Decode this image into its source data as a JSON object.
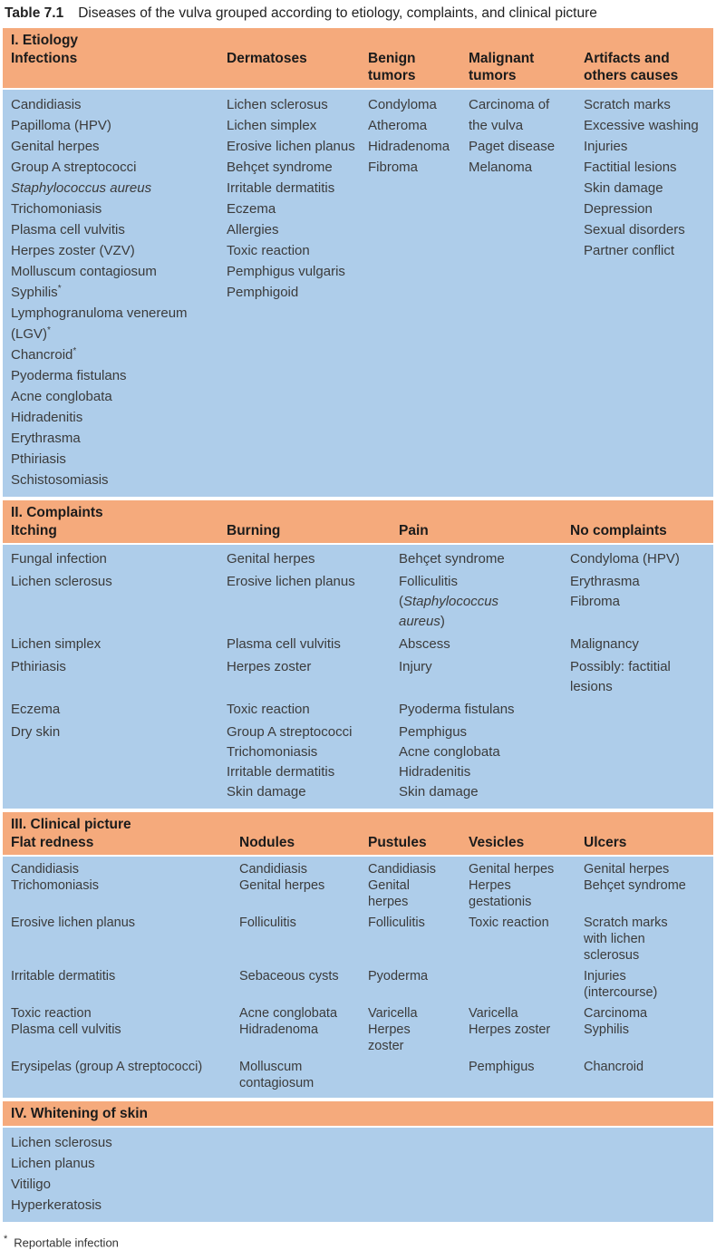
{
  "caption": {
    "label": "Table 7.1",
    "text": "Diseases of the vulva grouped according to etiology, complaints, and clinical picture"
  },
  "colors": {
    "band_orange": "#F5AA7C",
    "body_blue": "#AECDEA",
    "heading_text": "#1b1b1b",
    "body_text": "#3b3b3b"
  },
  "sections": [
    {
      "heading": "I. Etiology",
      "layout": "lists",
      "columns": [
        "Infections",
        "Dermatoses",
        "Benign tumors",
        "Malignant tumors",
        "Artifacts and others causes"
      ],
      "lists": [
        [
          "Candidiasis",
          "Papilloma (HPV)",
          "Genital herpes",
          "Group A streptococci",
          {
            "parts": [
              {
                "t": "Staphylococcus aureus",
                "i": true
              }
            ]
          },
          "Trichomoniasis",
          "Plasma cell vulvitis",
          "Herpes zoster (VZV)",
          "Molluscum contagiosum",
          {
            "parts": [
              {
                "t": "Syphilis"
              },
              {
                "t": "*",
                "sup": true
              }
            ]
          },
          {
            "parts": [
              {
                "t": "Lymphogranuloma venereum (LGV)"
              },
              {
                "t": "*",
                "sup": true
              }
            ]
          },
          {
            "parts": [
              {
                "t": "Chancroid"
              },
              {
                "t": "*",
                "sup": true
              }
            ]
          },
          "Pyoderma fistulans",
          "Acne conglobata",
          "Hidradenitis",
          "Erythrasma",
          "Pthiriasis",
          "Schistosomiasis"
        ],
        [
          "Lichen sclerosus",
          "Lichen simplex",
          "Erosive lichen planus",
          "Behçet syndrome",
          "Irritable dermatitis",
          "Eczema",
          "Allergies",
          "Toxic reaction",
          "Pemphigus vulgaris",
          "Pemphigoid"
        ],
        [
          "Condyloma",
          "Atheroma",
          "Hidradenoma",
          "Fibroma"
        ],
        [
          "Carcinoma of the vulva",
          "Paget disease",
          "Melanoma"
        ],
        [
          "Scratch marks",
          "Excessive washing",
          "Injuries",
          "Factitial lesions",
          "Skin damage",
          "Depression",
          "Sexual disorders",
          "Partner conflict"
        ]
      ]
    },
    {
      "heading": "II. Complaints",
      "layout": "rows",
      "columns": [
        "Itching",
        "Burning",
        "Pain",
        "No complaints"
      ],
      "rows": [
        [
          [
            "Fungal infection"
          ],
          [
            "Genital herpes"
          ],
          [
            "Behçet syndrome"
          ],
          [
            "Condyloma (HPV)"
          ]
        ],
        [
          [
            "Lichen sclerosus"
          ],
          [
            "Erosive lichen planus"
          ],
          [
            {
              "parts": [
                {
                  "t": "Folliculitis ("
                },
                {
                  "t": "Staphylococcus aureus",
                  "i": true
                },
                {
                  "t": ")"
                }
              ]
            }
          ],
          [
            "Erythrasma",
            "Fibroma"
          ]
        ],
        [
          [
            "Lichen simplex"
          ],
          [
            "Plasma cell vulvitis"
          ],
          [
            "Abscess"
          ],
          [
            "Malignancy"
          ]
        ],
        [
          [
            "Pthiriasis"
          ],
          [
            "Herpes zoster"
          ],
          [
            "Injury"
          ],
          [
            "Possibly: factitial lesions"
          ]
        ],
        [
          [
            "Eczema"
          ],
          [
            "Toxic reaction"
          ],
          [
            "Pyoderma fistulans"
          ],
          []
        ],
        [
          [
            "Dry skin"
          ],
          [
            "Group A streptococci",
            "Trichomoniasis",
            "Irritable dermatitis",
            "Skin damage"
          ],
          [
            "Pemphigus",
            "Acne conglobata",
            "Hidradenitis",
            "Skin damage"
          ],
          []
        ]
      ]
    },
    {
      "heading": "III. Clinical picture",
      "layout": "rows",
      "columns": [
        "Flat redness",
        "Nodules",
        "Pustules",
        "Vesicles",
        "Ulcers"
      ],
      "rows": [
        [
          [
            "Candidiasis",
            "Trichomoniasis"
          ],
          [
            "Candidiasis",
            "Genital herpes"
          ],
          [
            "Candidiasis",
            "Genital herpes"
          ],
          [
            "Genital herpes",
            "Herpes gestationis"
          ],
          [
            "Genital herpes",
            "Behçet syndrome"
          ]
        ],
        [
          [
            "Erosive lichen planus"
          ],
          [
            "Folliculitis"
          ],
          [
            "Folliculitis"
          ],
          [
            "Toxic reaction"
          ],
          [
            "Scratch marks with lichen sclerosus"
          ]
        ],
        [
          [
            "Irritable dermatitis"
          ],
          [
            "Sebaceous cysts"
          ],
          [
            "Pyoderma"
          ],
          [],
          [
            "Injuries (intercourse)"
          ]
        ],
        [
          [
            "Toxic reaction",
            "Plasma cell vulvitis"
          ],
          [
            "Acne conglobata",
            "Hidradenoma"
          ],
          [
            "Varicella",
            "Herpes zoster"
          ],
          [
            "Varicella",
            "Herpes zoster"
          ],
          [
            "Carcinoma",
            "Syphilis"
          ]
        ],
        [
          [
            "Erysipelas (group A streptococci)"
          ],
          [
            "Molluscum contagiosum"
          ],
          [],
          [
            "Pemphigus"
          ],
          [
            "Chancroid"
          ]
        ]
      ]
    },
    {
      "heading": "IV. Whitening of skin",
      "layout": "lists",
      "columns": [],
      "lists": [
        [
          "Lichen sclerosus",
          "Lichen planus",
          "Vitiligo",
          "Hyperkeratosis"
        ]
      ]
    }
  ],
  "footnote": {
    "marker": "*",
    "text": "Reportable infection"
  }
}
